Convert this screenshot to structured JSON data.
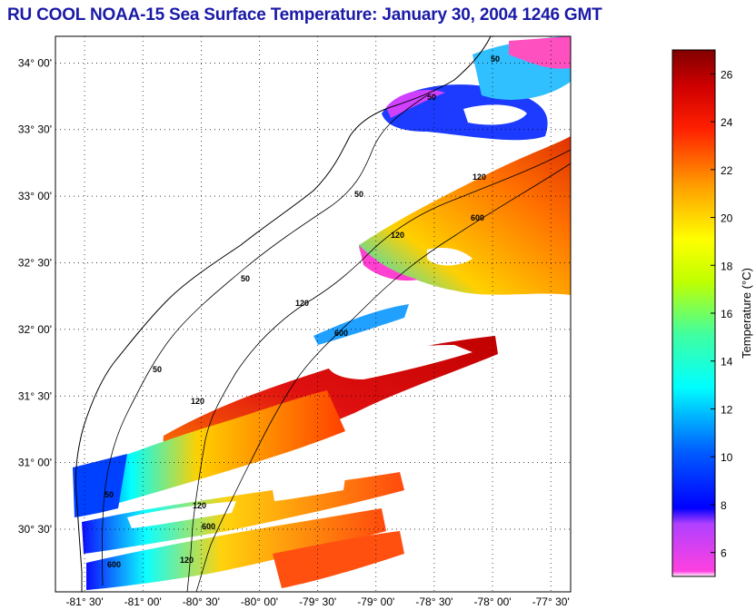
{
  "title": "RU COOL  NOAA-15  Sea Surface Temperature:  January 30, 2004 1246 GMT",
  "map": {
    "lon_range": [
      -81.75,
      -77.33
    ],
    "lat_range": [
      30.03,
      34.2
    ],
    "lat_ticks": [
      "34° 00'",
      "33° 30'",
      "33° 00'",
      "32° 30'",
      "32° 00'",
      "31° 30'",
      "31° 00'",
      "30° 30'"
    ],
    "lon_ticks": [
      "-81° 30'",
      "-81° 00'",
      "-80° 30'",
      "-80° 00'",
      "-79° 30'",
      "-79° 00'",
      "-78° 30'",
      "-78° 00'",
      "-77° 30'"
    ],
    "contour_labels": [
      "50",
      "50",
      "50",
      "50",
      "50",
      "50",
      "120",
      "120",
      "120",
      "120",
      "120",
      "120",
      "600",
      "600",
      "600",
      "600"
    ]
  },
  "colorbar": {
    "label": "Temperature (°C)",
    "range": [
      5,
      27
    ],
    "ticks": [
      "6",
      "8",
      "10",
      "12",
      "14",
      "16",
      "18",
      "20",
      "22",
      "24",
      "26"
    ]
  },
  "colors": {
    "title": "#1a1aa8",
    "cold": "#ff00ff",
    "cool": "#0000ff",
    "mid_cool": "#00ffff",
    "mid": "#ffff00",
    "warm": "#ff8000",
    "hot": "#dd0000",
    "max": "#800000"
  }
}
